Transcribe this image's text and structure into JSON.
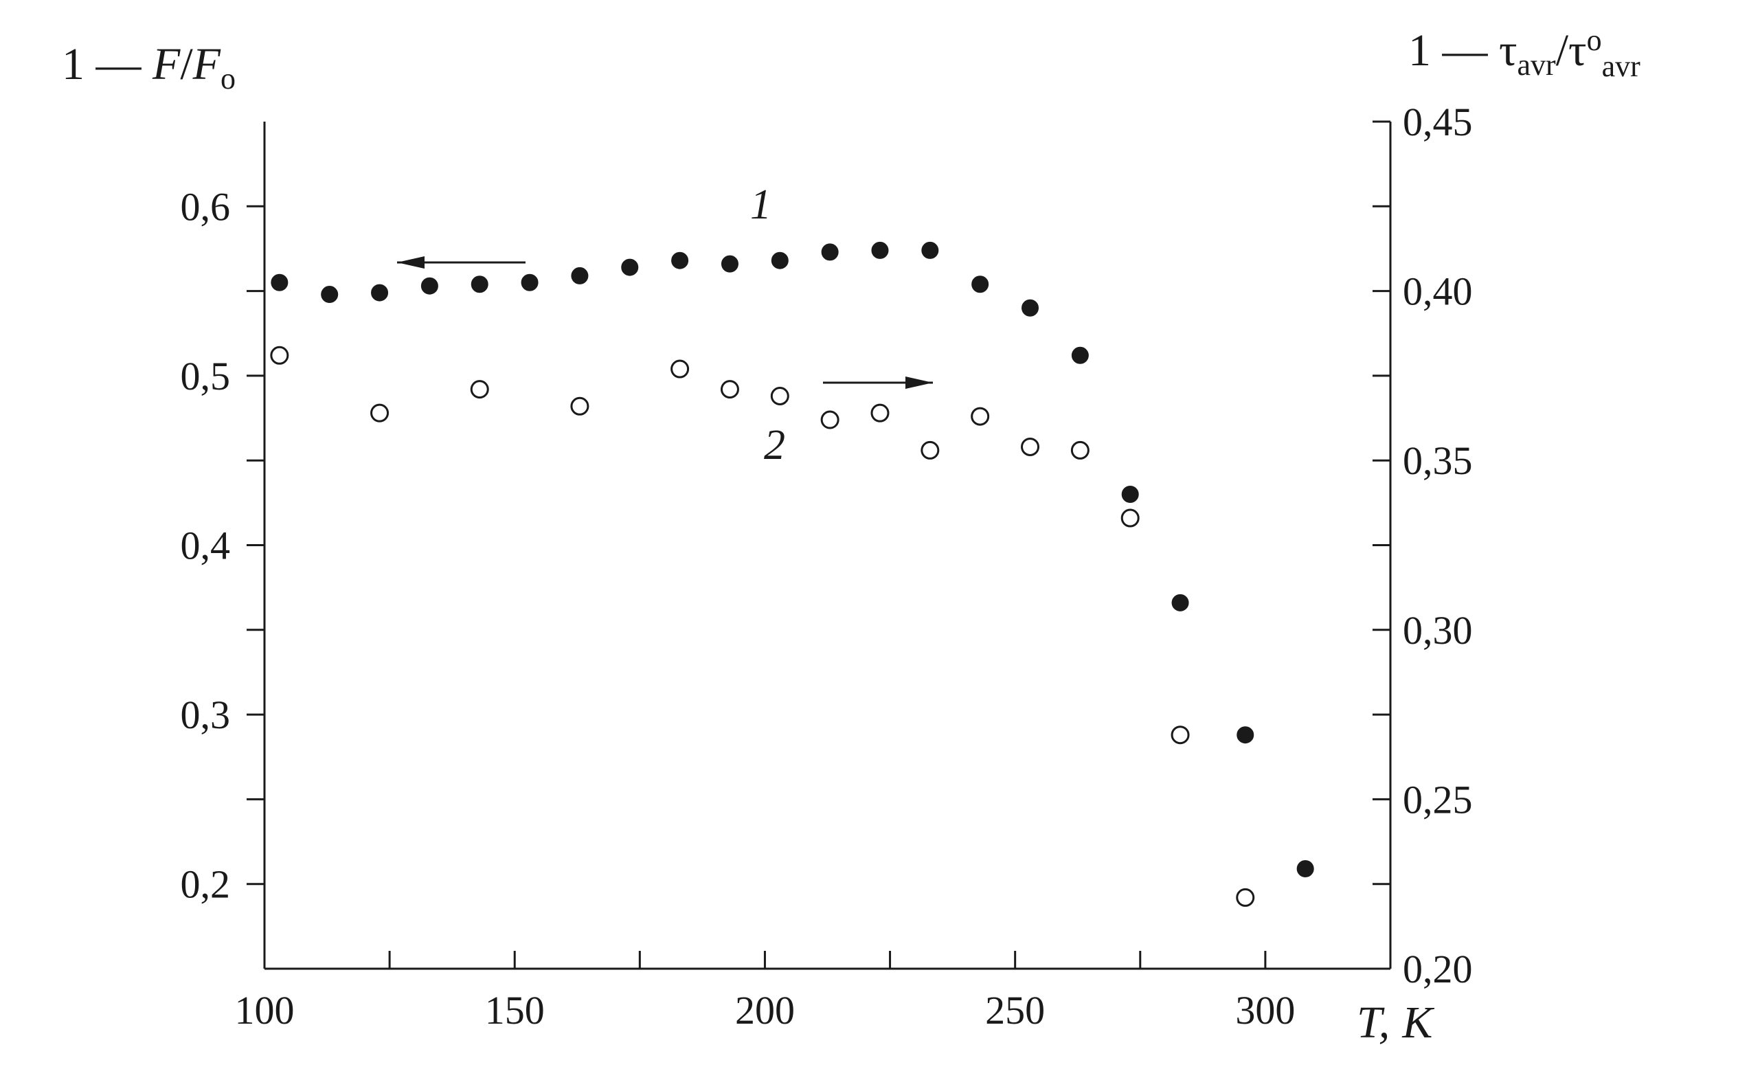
{
  "chart_data": {
    "type": "scatter",
    "title": "",
    "x_axis": {
      "label_main": "T,",
      "label_unit": "K",
      "range": [
        100,
        325
      ],
      "major_ticks": [
        100,
        150,
        200,
        250,
        300
      ],
      "tick_labels": [
        "100",
        "150",
        "200",
        "250",
        "300"
      ],
      "minor_ticks": [
        125,
        175,
        225,
        275
      ]
    },
    "y_axis_left": {
      "label_prefix": "1 — ",
      "label_f": "F",
      "label_slash": "/",
      "label_f0": "F",
      "label_sub": "o",
      "range": [
        0.15,
        0.65
      ],
      "major_ticks": [
        0.2,
        0.3,
        0.4,
        0.5,
        0.6
      ],
      "tick_labels": [
        "0,2",
        "0,3",
        "0,4",
        "0,5",
        "0,6"
      ],
      "minor_ticks": [
        0.25,
        0.35,
        0.45,
        0.55
      ]
    },
    "y_axis_right": {
      "label_prefix": "1 — τ",
      "label_sub1": "avr",
      "label_slash": "/τ",
      "label_sup": "o",
      "label_sub2": "avr",
      "range": [
        0.2,
        0.45
      ],
      "major_ticks": [
        0.2,
        0.25,
        0.3,
        0.35,
        0.4,
        0.45
      ],
      "tick_labels": [
        "0,20",
        "0,25",
        "0,30",
        "0,35",
        "0,40",
        "0,45"
      ],
      "minor_ticks": [
        0.225,
        0.275,
        0.325,
        0.375,
        0.425
      ]
    },
    "series": [
      {
        "name": "1",
        "marker": "filled-circle",
        "axis": "left",
        "x": [
          103,
          113,
          123,
          133,
          143,
          153,
          163,
          173,
          183,
          193,
          203,
          213,
          223,
          233,
          243,
          253,
          263,
          273,
          283,
          296,
          308
        ],
        "y": [
          0.555,
          0.548,
          0.549,
          0.553,
          0.554,
          0.555,
          0.559,
          0.564,
          0.568,
          0.566,
          0.568,
          0.573,
          0.574,
          0.574,
          0.554,
          0.54,
          0.512,
          0.43,
          0.366,
          0.288,
          0.209
        ]
      },
      {
        "name": "2",
        "marker": "open-circle",
        "axis": "right",
        "x": [
          103,
          123,
          143,
          163,
          183,
          193,
          203,
          213,
          223,
          233,
          243,
          253,
          263,
          273,
          283,
          296
        ],
        "y": [
          0.381,
          0.364,
          0.371,
          0.366,
          0.377,
          0.371,
          0.369,
          0.362,
          0.364,
          0.353,
          0.363,
          0.354,
          0.353,
          0.333,
          0.269,
          0.221
        ]
      }
    ],
    "colors": {
      "ink": "#1a1a1a",
      "background": "#ffffff"
    }
  }
}
